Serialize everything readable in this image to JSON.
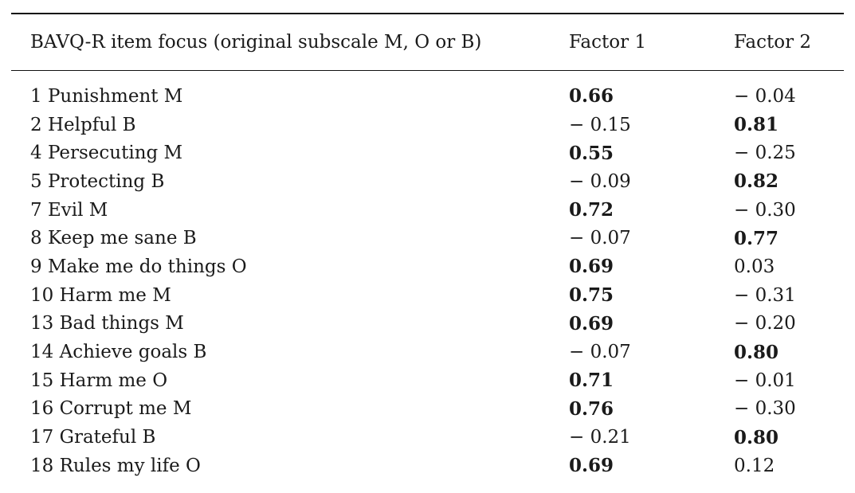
{
  "table": {
    "headers": [
      "BAVQ-R item focus (original subscale M, O or B)",
      "Factor 1",
      "Factor 2"
    ],
    "rows": [
      {
        "item": "1 Punishment M",
        "f1": "0.66",
        "f2": "− 0.04",
        "bold": 1
      },
      {
        "item": "2 Helpful B",
        "f1": "− 0.15",
        "f2": "0.81",
        "bold": 2
      },
      {
        "item": "4 Persecuting M",
        "f1": "0.55",
        "f2": "− 0.25",
        "bold": 1
      },
      {
        "item": "5 Protecting B",
        "f1": "− 0.09",
        "f2": "0.82",
        "bold": 2
      },
      {
        "item": "7 Evil M",
        "f1": "0.72",
        "f2": "− 0.30",
        "bold": 1
      },
      {
        "item": "8 Keep me sane B",
        "f1": "− 0.07",
        "f2": "0.77",
        "bold": 2
      },
      {
        "item": "9 Make me do things O",
        "f1": "0.69",
        "f2": "0.03",
        "bold": 1
      },
      {
        "item": "10 Harm me M",
        "f1": "0.75",
        "f2": "− 0.31",
        "bold": 1
      },
      {
        "item": "13 Bad things M",
        "f1": "0.69",
        "f2": "− 0.20",
        "bold": 1
      },
      {
        "item": "14 Achieve goals B",
        "f1": "− 0.07",
        "f2": "0.80",
        "bold": 2
      },
      {
        "item": "15 Harm me O",
        "f1": "0.71",
        "f2": "− 0.01",
        "bold": 1
      },
      {
        "item": "16 Corrupt me M",
        "f1": "0.76",
        "f2": "− 0.30",
        "bold": 1
      },
      {
        "item": "17 Grateful B",
        "f1": "− 0.21",
        "f2": "0.80",
        "bold": 2
      },
      {
        "item": "18 Rules my life O",
        "f1": "0.69",
        "f2": "0.12",
        "bold": 1
      }
    ]
  }
}
